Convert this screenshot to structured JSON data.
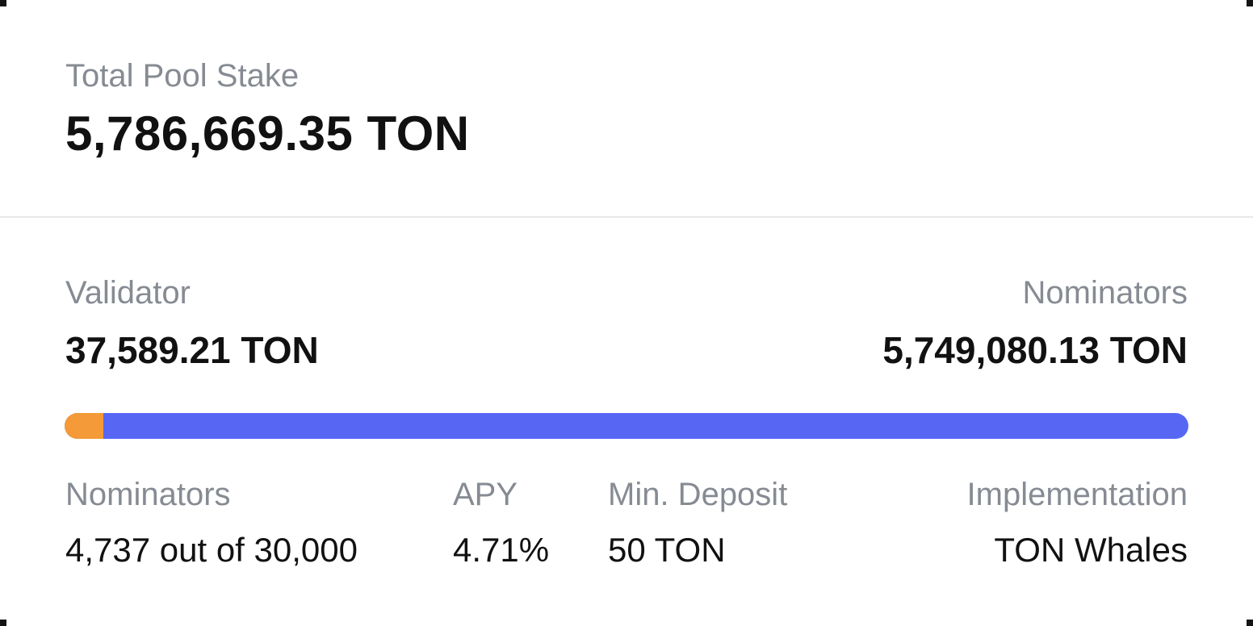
{
  "total": {
    "label": "Total Pool Stake",
    "value": "5,786,669.35 TON"
  },
  "split": {
    "validator": {
      "label": "Validator",
      "value": "37,589.21 TON",
      "color": "#f59a38"
    },
    "nominators": {
      "label": "Nominators",
      "value": "5,749,080.13 TON",
      "color": "#5767f4"
    },
    "validator_fraction": 0.0065
  },
  "stats": [
    {
      "label": "Nominators",
      "value": "4,737 out of 30,000"
    },
    {
      "label": "APY",
      "value": "4.71%"
    },
    {
      "label": "Min. Deposit",
      "value": "50 TON"
    },
    {
      "label": "Implementation",
      "value": "TON Whales"
    }
  ]
}
